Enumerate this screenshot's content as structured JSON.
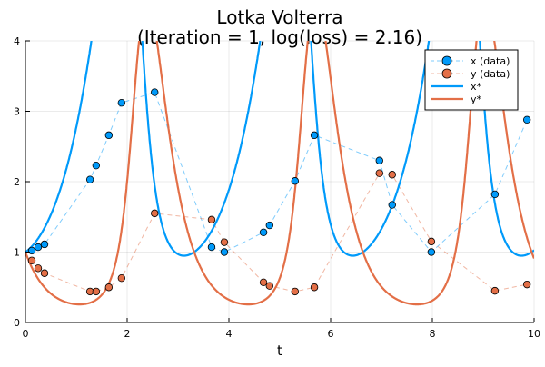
{
  "chart_data": {
    "type": "line",
    "title": "Lotka Volterra",
    "subtitle": "(Iteration = 1, log(loss) = 2.16)",
    "xlabel": "t",
    "ylabel": "",
    "xlim": [
      0,
      10
    ],
    "ylim": [
      0,
      4
    ],
    "xticks": [
      "0",
      "2",
      "4",
      "6",
      "8",
      "10"
    ],
    "yticks": [
      "0",
      "1",
      "2",
      "3",
      "4"
    ],
    "grid": true,
    "legend_position": "top-right",
    "t": [
      0.125,
      0.25,
      0.375,
      1.27,
      1.39,
      1.64,
      1.89,
      2.54,
      3.66,
      3.91,
      4.68,
      4.8,
      5.3,
      5.68,
      6.96,
      7.21,
      7.98,
      9.23,
      9.86
    ],
    "series": [
      {
        "name": "x (data)",
        "kind": "scatter-dashed",
        "color": "#009AFA",
        "values": [
          1.02,
          1.07,
          1.11,
          2.03,
          2.23,
          2.66,
          3.12,
          3.27,
          1.07,
          1.0,
          1.28,
          1.38,
          2.01,
          2.66,
          2.3,
          1.67,
          1.0,
          1.82,
          2.88
        ]
      },
      {
        "name": "y (data)",
        "kind": "scatter-dashed",
        "color": "#E36F47",
        "values": [
          0.88,
          0.77,
          0.7,
          0.44,
          0.44,
          0.5,
          0.63,
          1.55,
          1.46,
          1.14,
          0.57,
          0.52,
          0.44,
          0.5,
          2.12,
          2.1,
          1.15,
          0.45,
          0.54
        ]
      },
      {
        "name": "x*",
        "kind": "line",
        "color": "#009AFA"
      },
      {
        "name": "y*",
        "kind": "line",
        "color": "#E36F47"
      }
    ]
  }
}
